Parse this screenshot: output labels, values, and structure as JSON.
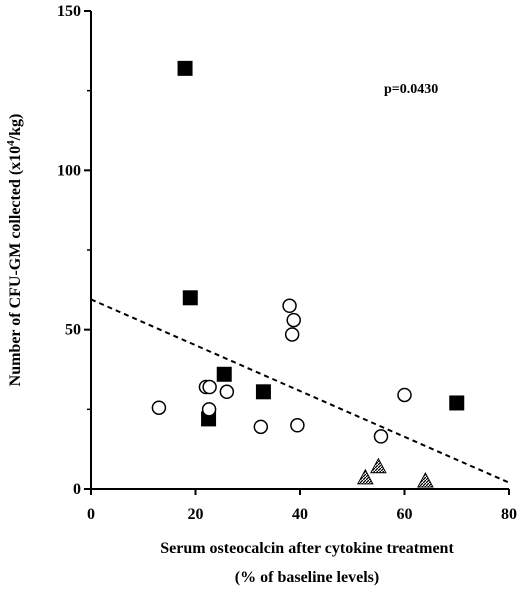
{
  "chart_data": {
    "type": "scatter",
    "title": "",
    "xlabel_line1": "Serum osteocalcin after cytokine treatment",
    "xlabel_line2": "(% of baseline levels)",
    "ylabel": "Number of CFU-GM collected (x10",
    "ylabel_sup": "4",
    "ylabel_end": "/kg)",
    "xlim": [
      0,
      80
    ],
    "ylim": [
      0,
      150
    ],
    "x_ticks": [
      0,
      20,
      40,
      60,
      80
    ],
    "y_ticks": [
      0,
      50,
      100,
      150
    ],
    "annotation": "p=0.0430",
    "grid": false,
    "series": [
      {
        "marker": "square-filled",
        "points": [
          [
            18,
            132
          ],
          [
            19,
            60
          ],
          [
            25.5,
            36
          ],
          [
            22.5,
            22
          ],
          [
            33,
            30.5
          ],
          [
            70,
            27
          ]
        ]
      },
      {
        "marker": "circle-open",
        "points": [
          [
            13,
            25.5
          ],
          [
            22,
            32
          ],
          [
            22.7,
            32
          ],
          [
            22.6,
            25
          ],
          [
            26,
            30.5
          ],
          [
            32.5,
            19.5
          ],
          [
            38,
            57.5
          ],
          [
            38.8,
            53
          ],
          [
            38.5,
            48.5
          ],
          [
            39.5,
            20
          ],
          [
            55.5,
            16.5
          ],
          [
            60,
            29.5
          ]
        ]
      },
      {
        "marker": "triangle-hatched",
        "points": [
          [
            52.5,
            3.5
          ],
          [
            55,
            7
          ],
          [
            64,
            2.5
          ]
        ]
      }
    ],
    "trendline": {
      "style": "dashed",
      "points": [
        [
          0,
          59.5
        ],
        [
          80,
          2
        ]
      ]
    }
  }
}
